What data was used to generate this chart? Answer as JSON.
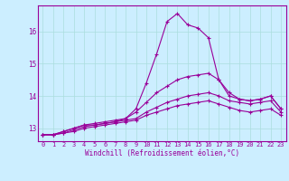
{
  "x": [
    0,
    1,
    2,
    3,
    4,
    5,
    6,
    7,
    8,
    9,
    10,
    11,
    12,
    13,
    14,
    15,
    16,
    17,
    18,
    19,
    20,
    21,
    22,
    23
  ],
  "lines": [
    [
      12.8,
      12.8,
      12.9,
      13.0,
      13.1,
      13.1,
      13.15,
      13.2,
      13.3,
      13.6,
      14.4,
      15.3,
      16.3,
      16.55,
      16.2,
      16.1,
      15.8,
      14.5,
      14.0,
      13.9,
      13.85,
      13.9,
      14.0,
      13.6
    ],
    [
      12.8,
      12.8,
      12.9,
      13.0,
      13.1,
      13.15,
      13.2,
      13.25,
      13.3,
      13.5,
      13.8,
      14.1,
      14.3,
      14.5,
      14.6,
      14.65,
      14.7,
      14.5,
      14.1,
      13.9,
      13.85,
      13.9,
      14.0,
      13.6
    ],
    [
      12.8,
      12.8,
      12.85,
      12.95,
      13.05,
      13.1,
      13.15,
      13.2,
      13.25,
      13.3,
      13.5,
      13.65,
      13.8,
      13.9,
      14.0,
      14.05,
      14.1,
      14.0,
      13.85,
      13.8,
      13.75,
      13.8,
      13.85,
      13.5
    ],
    [
      12.8,
      12.8,
      12.85,
      12.9,
      13.0,
      13.05,
      13.1,
      13.15,
      13.2,
      13.25,
      13.4,
      13.5,
      13.6,
      13.7,
      13.75,
      13.8,
      13.85,
      13.75,
      13.65,
      13.55,
      13.5,
      13.55,
      13.6,
      13.4
    ]
  ],
  "line_color": "#990099",
  "bg_color": "#cceeff",
  "grid_color": "#aadddd",
  "xlabel": "Windchill (Refroidissement éolien,°C)",
  "ylim": [
    12.6,
    16.8
  ],
  "xlim": [
    -0.5,
    23.5
  ],
  "yticks": [
    13,
    14,
    15,
    16
  ],
  "xticks": [
    0,
    1,
    2,
    3,
    4,
    5,
    6,
    7,
    8,
    9,
    10,
    11,
    12,
    13,
    14,
    15,
    16,
    17,
    18,
    19,
    20,
    21,
    22,
    23
  ],
  "tick_fontsize": 5.0,
  "xlabel_fontsize": 5.5,
  "linewidth": 0.8,
  "markersize": 3.0
}
